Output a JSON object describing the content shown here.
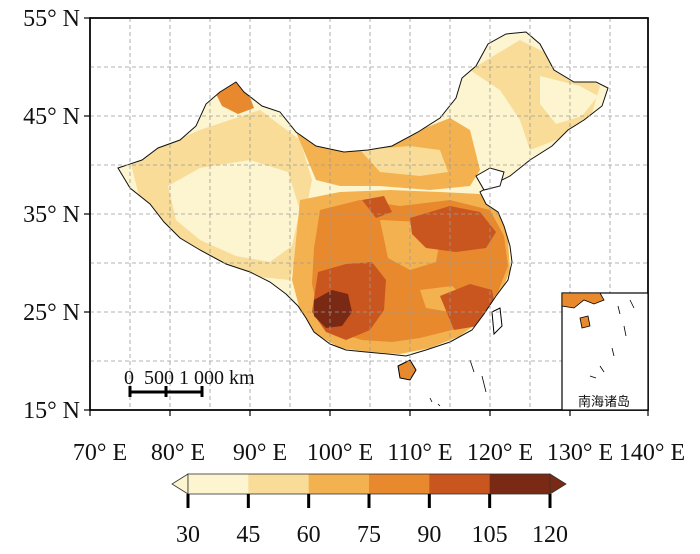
{
  "map": {
    "y_axis_labels": [
      "55° N",
      "45° N",
      "35° N",
      "25° N",
      "15° N"
    ],
    "x_axis_labels": [
      "70° E",
      "80° E",
      "90° E",
      "100° E",
      "110° E",
      "120° E",
      "130° E",
      "140° E"
    ],
    "scale_bar_label": "0  500 1 000 km",
    "inset_label": "南海诸岛",
    "colorbar": {
      "tick_labels": [
        "30",
        "45",
        "60",
        "75",
        "90",
        "105",
        "120"
      ],
      "colors": [
        "#fdf5cf",
        "#f8dc98",
        "#f3b24f",
        "#e8892e",
        "#c9561f",
        "#7a2a14"
      ]
    }
  }
}
